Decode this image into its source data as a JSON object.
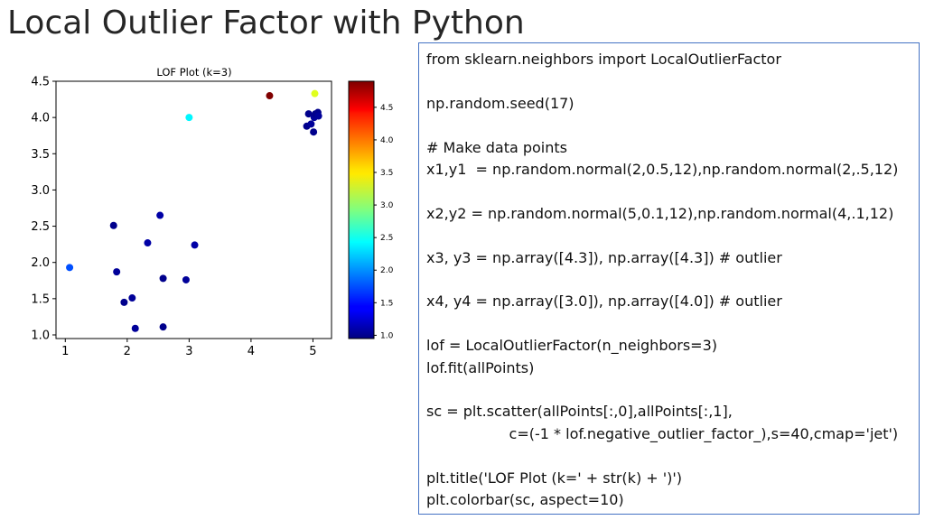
{
  "slide": {
    "title": "Local Outlier Factor with Python"
  },
  "code": {
    "lines": [
      "from sklearn.neighbors import LocalOutlierFactor",
      "",
      "np.random.seed(17)",
      "",
      "# Make data points",
      "x1,y1  = np.random.normal(2,0.5,12),np.random.normal(2,.5,12)",
      "",
      "x2,y2 = np.random.normal(5,0.1,12),np.random.normal(4,.1,12)",
      "",
      "x3, y3 = np.array([4.3]), np.array([4.3]) # outlier",
      "",
      "x4, y4 = np.array([3.0]), np.array([4.0]) # outlier",
      "",
      "lof = LocalOutlierFactor(n_neighbors=3)",
      "lof.fit(allPoints)",
      "",
      "sc = plt.scatter(allPoints[:,0],allPoints[:,1],",
      "                  c=(-1 * lof.negative_outlier_factor_),s=40,cmap='jet')",
      "",
      "plt.title('LOF Plot (k=' + str(k) + ')')",
      "plt.colorbar(sc, aspect=10)"
    ]
  },
  "chart_data": {
    "type": "scatter",
    "title": "LOF Plot (k=3)",
    "xlabel": "",
    "ylabel": "",
    "xlim": [
      0.85,
      5.3
    ],
    "ylim": [
      0.95,
      4.5
    ],
    "xticks": [
      "1",
      "2",
      "3",
      "4",
      "5"
    ],
    "yticks": [
      "1.0",
      "1.5",
      "2.0",
      "2.5",
      "3.0",
      "3.5",
      "4.0",
      "4.5"
    ],
    "grid": false,
    "colormap": "jet",
    "colorbar": {
      "range": [
        0.95,
        4.9
      ],
      "ticks": [
        "1.0",
        "1.5",
        "2.0",
        "2.5",
        "3.0",
        "3.5",
        "4.0",
        "4.5"
      ]
    },
    "points": [
      {
        "x": 1.07,
        "y": 1.93,
        "lof": 1.75
      },
      {
        "x": 1.78,
        "y": 2.51,
        "lof": 1.0
      },
      {
        "x": 1.83,
        "y": 1.87,
        "lof": 1.05
      },
      {
        "x": 1.95,
        "y": 1.45,
        "lof": 1.0
      },
      {
        "x": 2.08,
        "y": 1.51,
        "lof": 1.05
      },
      {
        "x": 2.13,
        "y": 1.09,
        "lof": 1.05
      },
      {
        "x": 2.33,
        "y": 2.27,
        "lof": 1.1
      },
      {
        "x": 2.53,
        "y": 2.65,
        "lof": 1.1
      },
      {
        "x": 2.58,
        "y": 1.78,
        "lof": 1.0
      },
      {
        "x": 2.58,
        "y": 1.11,
        "lof": 1.0
      },
      {
        "x": 2.95,
        "y": 1.76,
        "lof": 1.05
      },
      {
        "x": 3.0,
        "y": 4.0,
        "lof": 2.4
      },
      {
        "x": 3.09,
        "y": 2.24,
        "lof": 1.1
      },
      {
        "x": 4.3,
        "y": 4.3,
        "lof": 4.9
      },
      {
        "x": 4.9,
        "y": 3.88,
        "lof": 1.0
      },
      {
        "x": 4.93,
        "y": 4.05,
        "lof": 1.0
      },
      {
        "x": 4.97,
        "y": 3.91,
        "lof": 1.05
      },
      {
        "x": 5.01,
        "y": 3.8,
        "lof": 1.0
      },
      {
        "x": 5.02,
        "y": 4.0,
        "lof": 1.05
      },
      {
        "x": 5.04,
        "y": 4.05,
        "lof": 1.0
      },
      {
        "x": 5.08,
        "y": 4.07,
        "lof": 1.0
      },
      {
        "x": 5.09,
        "y": 4.02,
        "lof": 1.05
      },
      {
        "x": 5.03,
        "y": 4.33,
        "lof": 3.3
      }
    ]
  }
}
